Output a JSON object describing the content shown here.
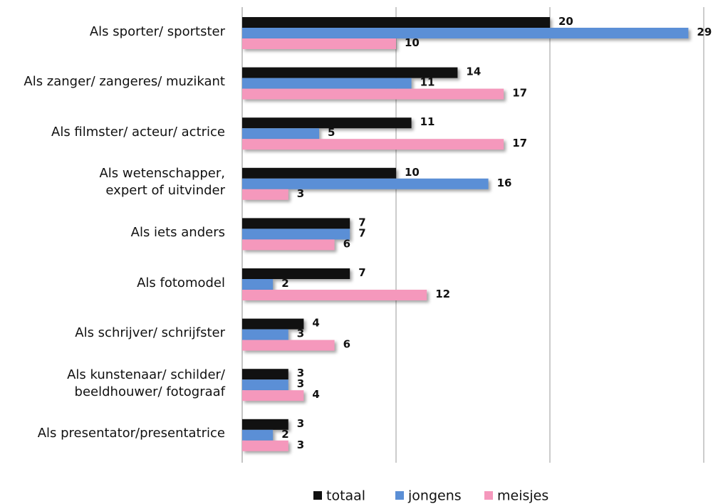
{
  "chart_data": {
    "type": "bar",
    "orientation": "horizontal",
    "categories": [
      "Als sporter/ sportster",
      "Als zanger/ zangeres/ muzikant",
      "Als filmster/ acteur/ actrice",
      "Als wetenschapper,\nexpert of uitvinder",
      "Als iets anders",
      "Als fotomodel",
      "Als schrijver/ schrijfster",
      "Als kunstenaar/ schilder/\nbeeldhouwer/ fotograaf",
      "Als presentator/presentatrice"
    ],
    "series": [
      {
        "name": "totaal",
        "color": "#111111",
        "values": [
          20,
          14,
          11,
          10,
          7,
          7,
          4,
          3,
          3
        ]
      },
      {
        "name": "jongens",
        "color": "#5b8fd6",
        "values": [
          29,
          11,
          5,
          16,
          7,
          2,
          3,
          3,
          2
        ]
      },
      {
        "name": "meisjes",
        "color": "#f598bc",
        "values": [
          10,
          17,
          17,
          3,
          6,
          12,
          6,
          4,
          3
        ]
      }
    ],
    "xlim": [
      0,
      30
    ],
    "xticks": [
      0,
      10,
      20,
      30
    ],
    "grid": true,
    "legend": "bottom"
  }
}
